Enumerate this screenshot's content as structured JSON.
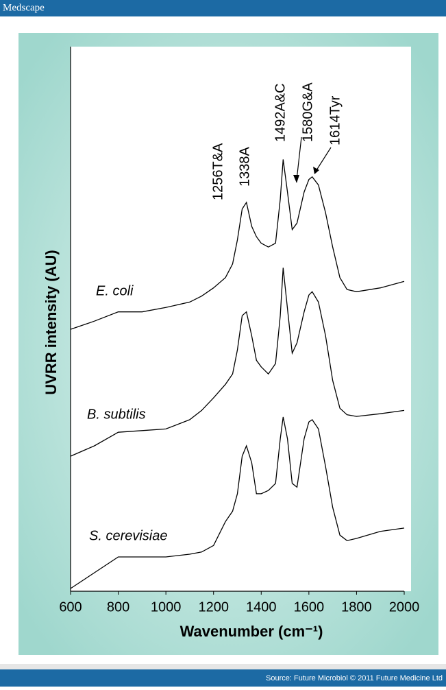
{
  "header": "Medscape",
  "footer": "Source: Future Microbiol © 2011 Future Medicine Ltd",
  "chart_data": {
    "type": "line",
    "x_label": "Wavenumber (cm⁻¹)",
    "y_label": "UVRR intensity (AU)",
    "x": [
      600,
      700,
      800,
      900,
      1000,
      1100,
      1150,
      1200,
      1250,
      1280,
      1300,
      1320,
      1338,
      1360,
      1380,
      1400,
      1430,
      1460,
      1480,
      1492,
      1510,
      1530,
      1550,
      1580,
      1600,
      1614,
      1640,
      1670,
      1700,
      1730,
      1760,
      1800,
      1900,
      2000
    ],
    "series": [
      {
        "name": "E. coli",
        "color": "#000000",
        "values": [
          48.1,
          49.6,
          51.3,
          51.3,
          52.1,
          53.1,
          54.2,
          55.7,
          57.6,
          60.1,
          64.5,
          70.2,
          71.4,
          67.0,
          65.1,
          63.9,
          63.2,
          63.9,
          72.0,
          79.3,
          73.3,
          66.4,
          67.6,
          73.3,
          75.6,
          76.1,
          74.6,
          69.5,
          63.2,
          57.6,
          55.4,
          55.0,
          55.7,
          56.9
        ]
      },
      {
        "name": "B. subtilis",
        "color": "#000000",
        "values": [
          24.8,
          26.7,
          29.2,
          29.5,
          29.8,
          31.5,
          33.2,
          35.5,
          38.0,
          39.9,
          44.3,
          50.6,
          51.3,
          46.9,
          42.4,
          41.2,
          39.9,
          41.8,
          50.6,
          59.4,
          51.9,
          43.7,
          45.6,
          51.3,
          54.4,
          55.0,
          53.1,
          46.9,
          38.7,
          33.6,
          32.4,
          32.1,
          32.6,
          33.2
        ]
      },
      {
        "name": "S. cerevisiae",
        "color": "#000000",
        "values": [
          0.5,
          3.4,
          6.3,
          6.3,
          6.3,
          6.8,
          7.2,
          8.4,
          12.8,
          14.7,
          17.9,
          24.8,
          26.7,
          23.6,
          17.9,
          17.9,
          18.5,
          19.8,
          28.0,
          32.0,
          28.0,
          19.8,
          19.1,
          28.0,
          31.1,
          31.5,
          29.8,
          22.9,
          15.4,
          10.3,
          9.3,
          9.7,
          11.0,
          11.6
        ]
      }
    ],
    "annotations": [
      "1256T&A",
      "1338A",
      "1492A&C",
      "1580G&A",
      "1614Tyr"
    ],
    "xlim": [
      600,
      2000
    ],
    "xticks": [
      600,
      800,
      1000,
      1200,
      1400,
      1600,
      1800,
      2000
    ],
    "ylim": [
      0,
      100
    ]
  }
}
